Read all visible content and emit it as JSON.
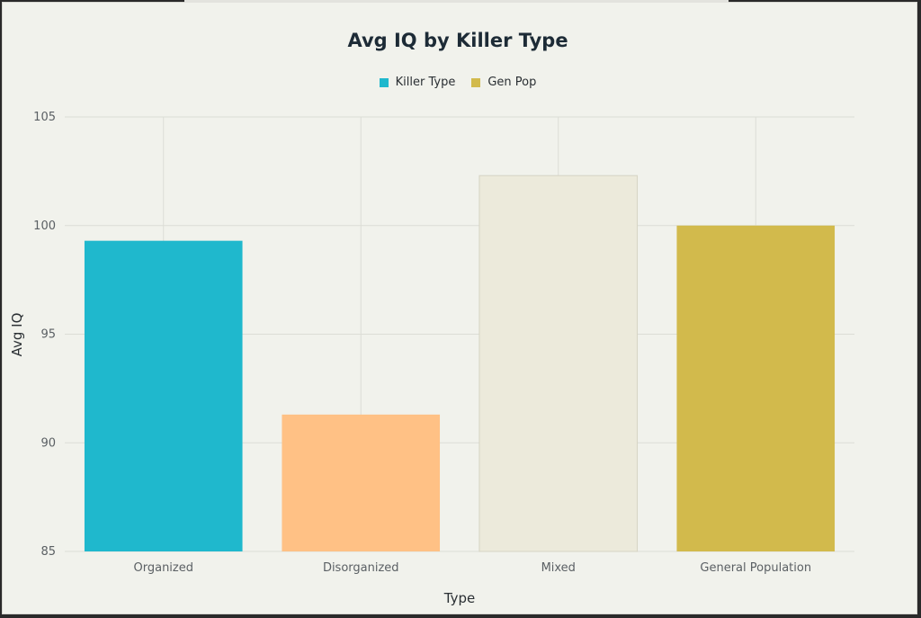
{
  "chart_data": {
    "type": "bar",
    "title": "Avg IQ by Killer Type",
    "xlabel": "Type",
    "ylabel": "Avg IQ",
    "categories": [
      "Organized",
      "Disorganized",
      "Mixed",
      "General Population"
    ],
    "values": [
      99.3,
      91.3,
      102.3,
      100.0
    ],
    "bar_colors": [
      "#1fb8cd",
      "#ffc185",
      "#eceadb",
      "#d2ba4c"
    ],
    "ylim": [
      85,
      105
    ],
    "yticks": [
      "85",
      "90",
      "95",
      "100",
      "105"
    ],
    "grid": true,
    "legend_position": "top-center",
    "legend": [
      {
        "label": "Killer Type",
        "color": "#1fb8cd"
      },
      {
        "label": "Gen Pop",
        "color": "#d2ba4c"
      }
    ]
  }
}
